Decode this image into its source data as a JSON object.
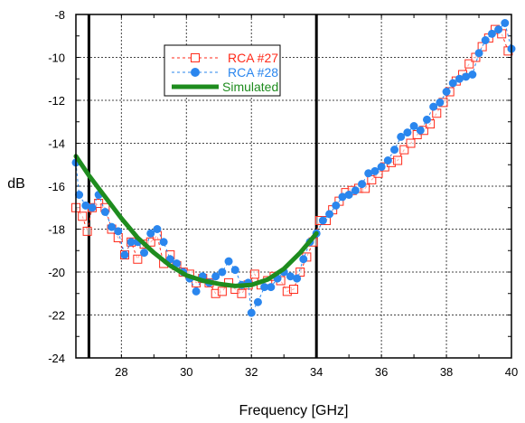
{
  "chart_data": {
    "type": "line",
    "title": "",
    "xlabel": "Frequency [GHz]",
    "ylabel": "dB",
    "xlim": [
      26.6,
      40
    ],
    "ylim": [
      -24,
      -8
    ],
    "x_ticks": [
      28,
      30,
      32,
      34,
      36,
      38,
      40
    ],
    "x_tick_labels": [
      "28",
      "30",
      "32",
      "34",
      "36",
      "38",
      "40"
    ],
    "y_ticks": [
      -8,
      -10,
      -12,
      -14,
      -16,
      -18,
      -20,
      -22,
      -24
    ],
    "y_tick_labels": [
      "-8",
      "-10",
      "-12",
      "-14",
      "-16",
      "-18",
      "-20",
      "-22",
      "-24"
    ],
    "grid": true,
    "legend_position": "top-left",
    "vertical_markers": [
      27,
      34
    ],
    "series": [
      {
        "name": "RCA #27",
        "color": "#ff2a1a",
        "marker": "open-square",
        "line": "dashed",
        "x": [
          26.6,
          26.8,
          26.95,
          27.1,
          27.3,
          27.5,
          27.7,
          27.9,
          28.1,
          28.3,
          28.5,
          28.7,
          28.9,
          29.1,
          29.3,
          29.5,
          29.7,
          29.9,
          30.1,
          30.3,
          30.5,
          30.7,
          30.9,
          31.1,
          31.3,
          31.5,
          31.7,
          31.9,
          32.1,
          32.3,
          32.5,
          32.7,
          32.9,
          33.1,
          33.3,
          33.5,
          33.7,
          33.9,
          34.1,
          34.3,
          34.5,
          34.7,
          34.9,
          35.1,
          35.3,
          35.5,
          35.7,
          35.9,
          36.1,
          36.3,
          36.5,
          36.7,
          36.9,
          37.1,
          37.3,
          37.5,
          37.7,
          37.9,
          38.1,
          38.3,
          38.5,
          38.7,
          38.9,
          39.1,
          39.3,
          39.5,
          39.7,
          39.9
        ],
        "y": [
          -17.0,
          -17.4,
          -18.1,
          -17.0,
          -16.8,
          -17.0,
          -18.0,
          -18.4,
          -19.2,
          -18.6,
          -19.4,
          -18.7,
          -18.6,
          -18.3,
          -19.6,
          -19.2,
          -19.7,
          -20.0,
          -20.1,
          -20.5,
          -20.3,
          -20.5,
          -21.0,
          -20.9,
          -20.5,
          -20.8,
          -21.0,
          -20.6,
          -20.1,
          -20.6,
          -20.4,
          -20.2,
          -20.4,
          -20.9,
          -20.8,
          -20.0,
          -19.3,
          -18.6,
          -17.6,
          -17.6,
          -17.1,
          -16.7,
          -16.3,
          -16.2,
          -16.1,
          -16.1,
          -15.7,
          -15.4,
          -15.1,
          -14.9,
          -14.8,
          -14.3,
          -14.0,
          -13.6,
          -13.4,
          -13.1,
          -12.6,
          -12.1,
          -11.6,
          -11.1,
          -10.8,
          -10.3,
          -10.0,
          -9.5,
          -9.1,
          -8.7,
          -8.9,
          -9.7
        ]
      },
      {
        "name": "RCA #28",
        "color": "#2a86ee",
        "marker": "filled-circle",
        "line": "dashed",
        "x": [
          26.6,
          26.7,
          26.9,
          27.1,
          27.3,
          27.5,
          27.7,
          27.9,
          28.1,
          28.3,
          28.5,
          28.7,
          28.9,
          29.1,
          29.3,
          29.5,
          29.7,
          29.9,
          30.1,
          30.3,
          30.5,
          30.7,
          30.9,
          31.1,
          31.3,
          31.5,
          31.7,
          31.9,
          32.0,
          32.2,
          32.4,
          32.6,
          32.8,
          33.0,
          33.2,
          33.4,
          33.6,
          33.8,
          34.0,
          34.2,
          34.4,
          34.6,
          34.8,
          35.0,
          35.2,
          35.4,
          35.6,
          35.8,
          36.0,
          36.2,
          36.4,
          36.6,
          36.8,
          37.0,
          37.2,
          37.4,
          37.6,
          37.8,
          38.0,
          38.2,
          38.4,
          38.6,
          38.8,
          39.0,
          39.2,
          39.4,
          39.6,
          39.8,
          40.0
        ],
        "y": [
          -14.9,
          -16.4,
          -16.9,
          -17.0,
          -16.4,
          -17.2,
          -17.9,
          -18.1,
          -19.2,
          -18.6,
          -18.6,
          -19.1,
          -18.2,
          -18.0,
          -18.6,
          -19.4,
          -19.6,
          -20.0,
          -20.3,
          -20.9,
          -20.2,
          -20.5,
          -20.2,
          -20.0,
          -19.5,
          -19.9,
          -20.6,
          -20.5,
          -21.9,
          -21.4,
          -20.7,
          -20.7,
          -20.3,
          -20.0,
          -20.2,
          -20.3,
          -19.4,
          -18.6,
          -18.2,
          -17.6,
          -17.3,
          -16.9,
          -16.5,
          -16.4,
          -16.2,
          -15.9,
          -15.4,
          -15.3,
          -15.1,
          -14.8,
          -14.3,
          -13.7,
          -13.5,
          -13.2,
          -13.4,
          -12.9,
          -12.3,
          -12.1,
          -11.6,
          -11.2,
          -11.0,
          -10.9,
          -10.8,
          -9.8,
          -9.2,
          -8.9,
          -8.7,
          -8.4,
          -9.6
        ]
      },
      {
        "name": "Simulated",
        "color": "#1e8c1e",
        "marker": "none",
        "line": "solid",
        "x": [
          26.6,
          27.0,
          27.5,
          28.0,
          28.5,
          29.0,
          29.5,
          30.0,
          30.5,
          31.0,
          31.5,
          32.0,
          32.5,
          33.0,
          33.5,
          34.0
        ],
        "y": [
          -14.6,
          -15.5,
          -16.5,
          -17.5,
          -18.4,
          -19.1,
          -19.7,
          -20.15,
          -20.4,
          -20.55,
          -20.65,
          -20.6,
          -20.35,
          -19.85,
          -19.1,
          -18.2
        ]
      }
    ]
  }
}
